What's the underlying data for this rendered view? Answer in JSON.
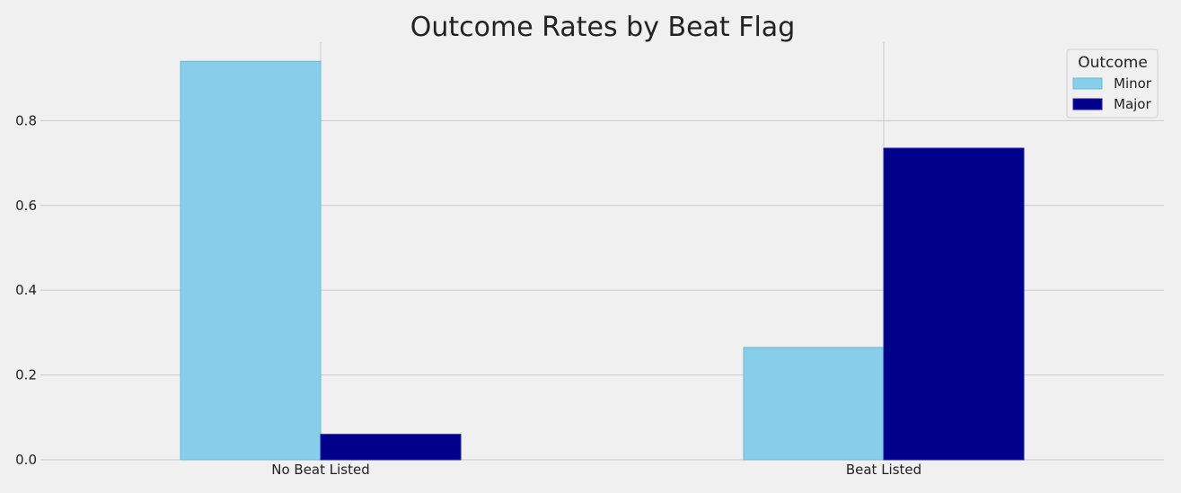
{
  "chart_data": {
    "type": "bar",
    "title": "Outcome Rates by Beat Flag",
    "xlabel": "",
    "ylabel": "",
    "categories": [
      "No Beat Listed",
      "Beat Listed"
    ],
    "series": [
      {
        "name": "Minor",
        "values": [
          0.94,
          0.265
        ],
        "color": "#87ceeb"
      },
      {
        "name": "Major",
        "values": [
          0.06,
          0.735
        ],
        "color": "#00008b"
      }
    ],
    "ylim": [
      0,
      0.985
    ],
    "yticks": [
      0.0,
      0.2,
      0.4,
      0.6,
      0.8
    ],
    "ytick_labels": [
      "0.0",
      "0.2",
      "0.4",
      "0.6",
      "0.8"
    ],
    "grid": true,
    "legend": {
      "title": "Outcome",
      "placement": "top-right"
    }
  }
}
